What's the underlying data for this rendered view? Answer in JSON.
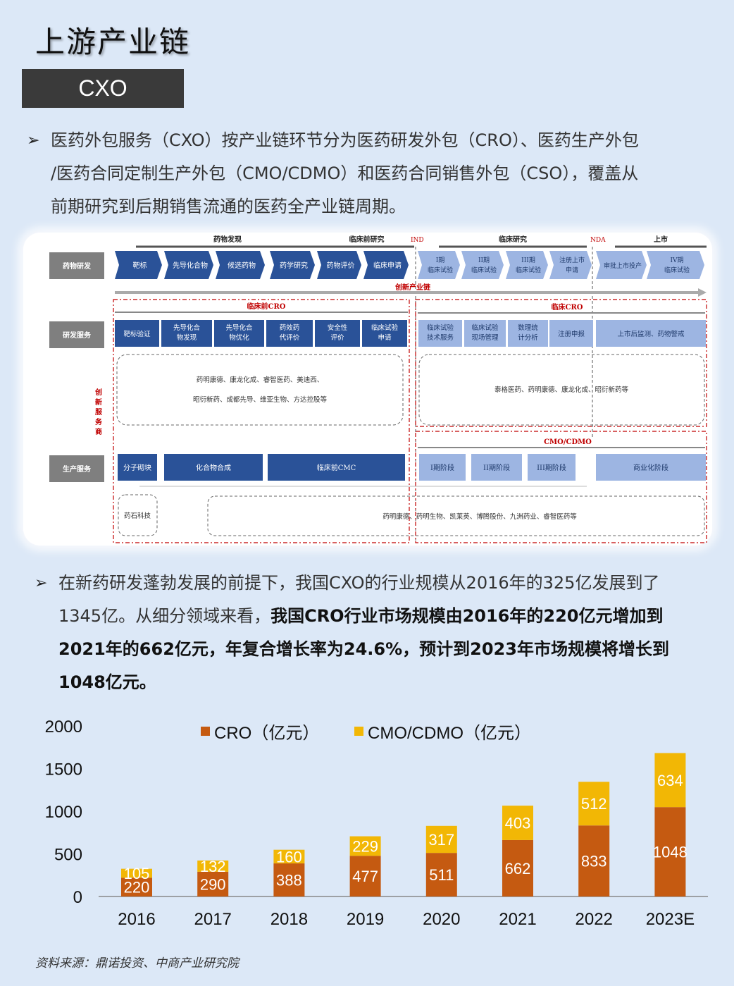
{
  "title": "上游产业链",
  "tag": "CXO",
  "para1": "医药外包服务（CXO）按产业链环节分为医药研发外包（CRO）、医药生产外包/医药合同定制生产外包（CMO/CDMO）和医药合同销售外包（CSO），覆盖从前期研究到后期销售流通的医药全产业链周期。",
  "para1_lines": [
    "医药外包服务（CXO）按产业链环节分为医药研发外包（CRO）、医药生产外包",
    "/医药合同定制生产外包（CMO/CDMO）和医药合同销售外包（CSO），覆盖从",
    "前期研究到后期销售流通的医药全产业链周期。"
  ],
  "para2": {
    "line1": "在新药研发蓬勃发展的前提下，我国CXO的行业规模从2016年的325亿发展到了",
    "line2a": "1345亿。从细分领域来看，",
    "line2b": "我国CRO行业市场规模由2016年的220亿元增加到",
    "line3": "2021年的662亿元，年复合增长率为24.6%，预计到2023年市场规模将增长到",
    "line4": "1048亿元。"
  },
  "diagram": {
    "phases": [
      "药物发现",
      "临床前研究",
      "临床研究",
      "上市"
    ],
    "milestones": [
      "IND",
      "NDA"
    ],
    "rows": [
      "药物研发",
      "研发服务",
      "生产服务"
    ],
    "side_label": [
      "创",
      "新",
      "服",
      "务",
      "商"
    ],
    "rd_steps": [
      "靶标",
      "先导化合物",
      "候选药物",
      "药学研究",
      "药物评价",
      "临床申请"
    ],
    "clinical_steps": [
      [
        "I期",
        "临床试验"
      ],
      [
        "II期",
        "临床试验"
      ],
      [
        "III期",
        "临床试验"
      ],
      [
        "注册上市",
        "申请"
      ],
      [
        "审批上市投产"
      ],
      [
        "IV期",
        "临床试验"
      ]
    ],
    "chain_label": "创新产业链",
    "preclinical_cro": "临床前CRO",
    "clinical_cro": "临床CRO",
    "preclinical_services": [
      [
        "靶标验证"
      ],
      [
        "先导化合",
        "物发现"
      ],
      [
        "先导化合",
        "物优化"
      ],
      [
        "药效药",
        "代评价"
      ],
      [
        "安全性",
        "评价"
      ],
      [
        "临床试验",
        "申请"
      ]
    ],
    "clinical_services": [
      [
        "临床试验",
        "技术服务"
      ],
      [
        "临床试验",
        "现场管理"
      ],
      [
        "数理统",
        "计分析"
      ],
      [
        "注册申报"
      ],
      [
        "上市后监测、药物警戒"
      ]
    ],
    "preclinical_companies": [
      "药明康德、康龙化成、睿智医药、美迪西、",
      "昭衍新药、成都先导、维亚生物、方达控股等"
    ],
    "clinical_companies": "泰格医药、药明康德、康龙化成、昭衍新药等",
    "cmo_label": "CMO/CDMO",
    "production": [
      "分子砌块",
      "化合物合成",
      "临床前CMC",
      "I期阶段",
      "II期阶段",
      "III期阶段",
      "商业化阶段"
    ],
    "production_companies_left": "药石科技",
    "production_companies": "药明康德、药明生物、凯莱英、博腾股份、九洲药业、睿智医药等"
  },
  "chart_data": {
    "type": "bar",
    "stacked": true,
    "categories": [
      "2016",
      "2017",
      "2018",
      "2019",
      "2020",
      "2021",
      "2022",
      "2023E"
    ],
    "series": [
      {
        "name": "CRO（亿元）",
        "values": [
          220,
          290,
          388,
          477,
          511,
          662,
          833,
          1048
        ],
        "color": "#c55a11"
      },
      {
        "name": "CMO/CDMO（亿元）",
        "values": [
          105,
          132,
          160,
          229,
          317,
          403,
          512,
          634
        ],
        "color": "#f2b705"
      }
    ],
    "ylim": [
      0,
      2000
    ],
    "yticks": [
      2000,
      1500,
      1000,
      500,
      0
    ],
    "legend_position": "top",
    "grid": false
  },
  "source": "资料来源：鼎诺投资、中商产业研究院"
}
